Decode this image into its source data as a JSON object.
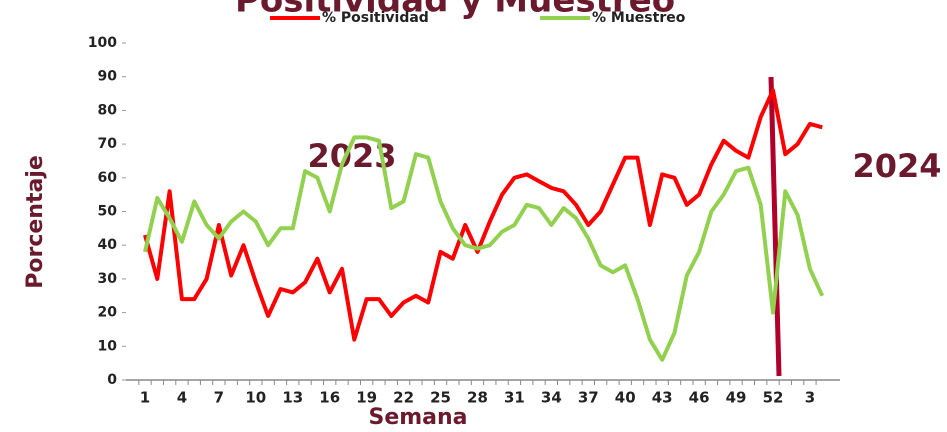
{
  "chart_data": {
    "type": "line",
    "title": "Positividad y Muestreo",
    "x_label": "Semana",
    "y_label": "Porcentaje",
    "annotations": [
      "2023",
      "2024"
    ],
    "categories": [
      "1",
      null,
      null,
      "4",
      null,
      null,
      "7",
      null,
      null,
      "10",
      null,
      null,
      "13",
      null,
      null,
      "16",
      null,
      null,
      "19",
      null,
      null,
      "22",
      null,
      null,
      "25",
      null,
      null,
      "28",
      null,
      null,
      "31",
      null,
      null,
      "34",
      null,
      null,
      "37",
      null,
      null,
      "40",
      null,
      null,
      "43",
      null,
      null,
      "46",
      null,
      null,
      "49",
      null,
      null,
      "52",
      null,
      null,
      "3",
      null
    ],
    "series": [
      {
        "name": "% Positividad",
        "color": "#ff0000",
        "values": [
          43,
          30,
          56,
          24,
          24,
          30,
          46,
          31,
          40,
          29,
          19,
          27,
          26,
          29,
          36,
          26,
          33,
          12,
          24,
          24,
          19,
          23,
          25,
          23,
          38,
          36,
          46,
          38,
          47,
          55,
          60,
          61,
          59,
          57,
          56,
          52,
          46,
          50,
          58,
          66,
          66,
          46,
          61,
          60,
          52,
          55,
          64,
          71,
          68,
          66,
          78,
          86,
          67,
          70,
          76,
          75
        ]
      },
      {
        "name": "% Muestreo",
        "color": "#92d050",
        "values": [
          38,
          54,
          48,
          41,
          53,
          46,
          42,
          47,
          50,
          47,
          40,
          45,
          45,
          62,
          60,
          50,
          64,
          72,
          72,
          71,
          51,
          53,
          67,
          66,
          53,
          45,
          40,
          39,
          40,
          44,
          46,
          52,
          51,
          46,
          51,
          48,
          42,
          34,
          32,
          34,
          24,
          12,
          6,
          14,
          31,
          38,
          50,
          55,
          62,
          63,
          52,
          20,
          56,
          49,
          33,
          25
        ]
      }
    ],
    "ylim": [
      0,
      100
    ],
    "yticks": [
      0,
      10,
      20,
      30,
      40,
      50,
      60,
      70,
      80,
      90,
      100
    ]
  }
}
